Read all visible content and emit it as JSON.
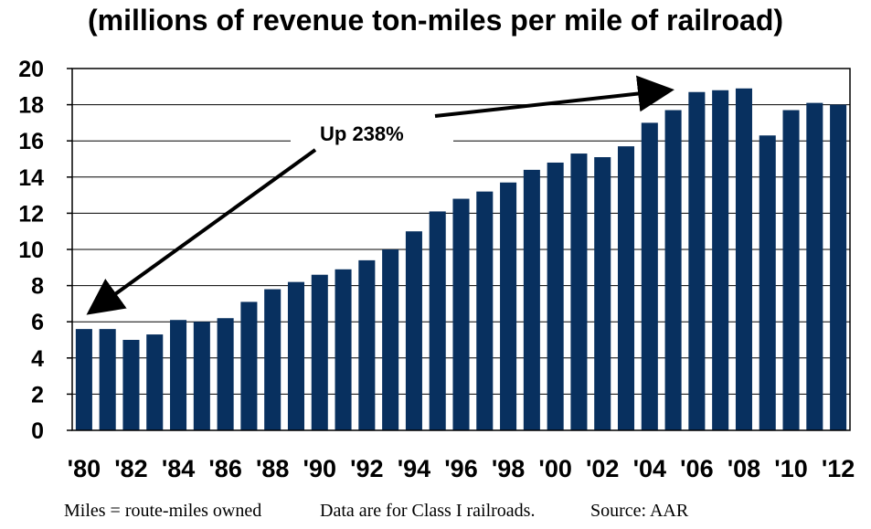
{
  "chart_data": {
    "type": "bar",
    "title": "(millions of revenue ton-miles per mile of railroad)",
    "categories": [
      "1980",
      "1981",
      "1982",
      "1983",
      "1984",
      "1985",
      "1986",
      "1987",
      "1988",
      "1989",
      "1990",
      "1991",
      "1992",
      "1993",
      "1994",
      "1995",
      "1996",
      "1997",
      "1998",
      "1999",
      "2000",
      "2001",
      "2002",
      "2003",
      "2004",
      "2005",
      "2006",
      "2007",
      "2008",
      "2009",
      "2010",
      "2011",
      "2012"
    ],
    "values": [
      5.6,
      5.6,
      5.0,
      5.3,
      6.1,
      6.0,
      6.2,
      7.1,
      7.8,
      8.2,
      8.6,
      8.9,
      9.4,
      10.0,
      11.0,
      12.1,
      12.8,
      13.2,
      13.7,
      14.4,
      14.8,
      15.3,
      15.1,
      15.7,
      17.0,
      17.7,
      18.7,
      18.8,
      18.9,
      16.3,
      17.7,
      18.1,
      18.0
    ],
    "x_tick_labels": [
      "'80",
      "'82",
      "'84",
      "'86",
      "'88",
      "'90",
      "'92",
      "'94",
      "'96",
      "'98",
      "'00",
      "'02",
      "'04",
      "'06",
      "'08",
      "'10",
      "'12"
    ],
    "y_tick_labels": [
      "0",
      "2",
      "4",
      "6",
      "8",
      "10",
      "12",
      "14",
      "16",
      "18",
      "20"
    ],
    "ylim": [
      0,
      20
    ],
    "xlabel": "",
    "ylabel": "",
    "grid": true,
    "bar_color": "#08305f",
    "annotation": "Up 238%"
  },
  "footer": {
    "note_miles": "Miles = route-miles owned",
    "note_class": "Data are for Class I railroads.",
    "note_source": "Source: AAR"
  }
}
